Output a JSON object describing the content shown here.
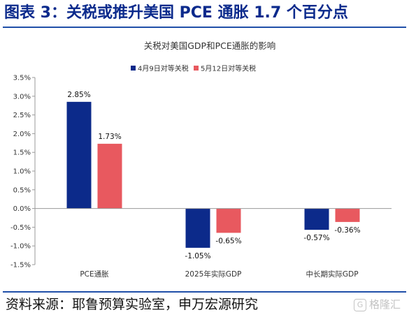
{
  "header": {
    "title": "图表 3：关税或推升美国 PCE 通胀 1.7 个百分点"
  },
  "footer": {
    "source": "资料来源：耶鲁预算实验室，申万宏源研究"
  },
  "watermark": {
    "text": "格隆汇",
    "icon": "g-logo-icon"
  },
  "colors": {
    "title": "#0b2a8c",
    "rule": "#1f4fa8",
    "series_a": "#0c2a8a",
    "series_b": "#e8595f"
  },
  "chart_data": {
    "type": "bar",
    "title": "关税对美国GDP和PCE通胀的影响",
    "categories": [
      "PCE通胀",
      "2025年实际GDP",
      "中长期实际GDP"
    ],
    "series": [
      {
        "name": "4月9日对等关税",
        "values": [
          2.85,
          -1.05,
          -0.57
        ],
        "labels": [
          "2.85%",
          "-1.05%",
          "-0.57%"
        ],
        "color": "#0c2a8a"
      },
      {
        "name": "5月12日对等关税",
        "values": [
          1.73,
          -0.65,
          -0.36
        ],
        "labels": [
          "1.73%",
          "-0.65%",
          "-0.36%"
        ],
        "color": "#e8595f"
      }
    ],
    "ylim": [
      -1.5,
      3.5
    ],
    "yticks": [
      3.5,
      3.0,
      2.5,
      2.0,
      1.5,
      1.0,
      0.5,
      0.0,
      -0.5,
      -1.0,
      -1.5
    ],
    "ytick_labels": [
      "3.5%",
      "3.0%",
      "2.5%",
      "2.0%",
      "1.5%",
      "1.0%",
      "0.5%",
      "0.0%",
      "-0.5%",
      "-1.0%",
      "-1.5%"
    ],
    "xlabel": "",
    "ylabel": "",
    "grid": false,
    "legend": "top"
  }
}
